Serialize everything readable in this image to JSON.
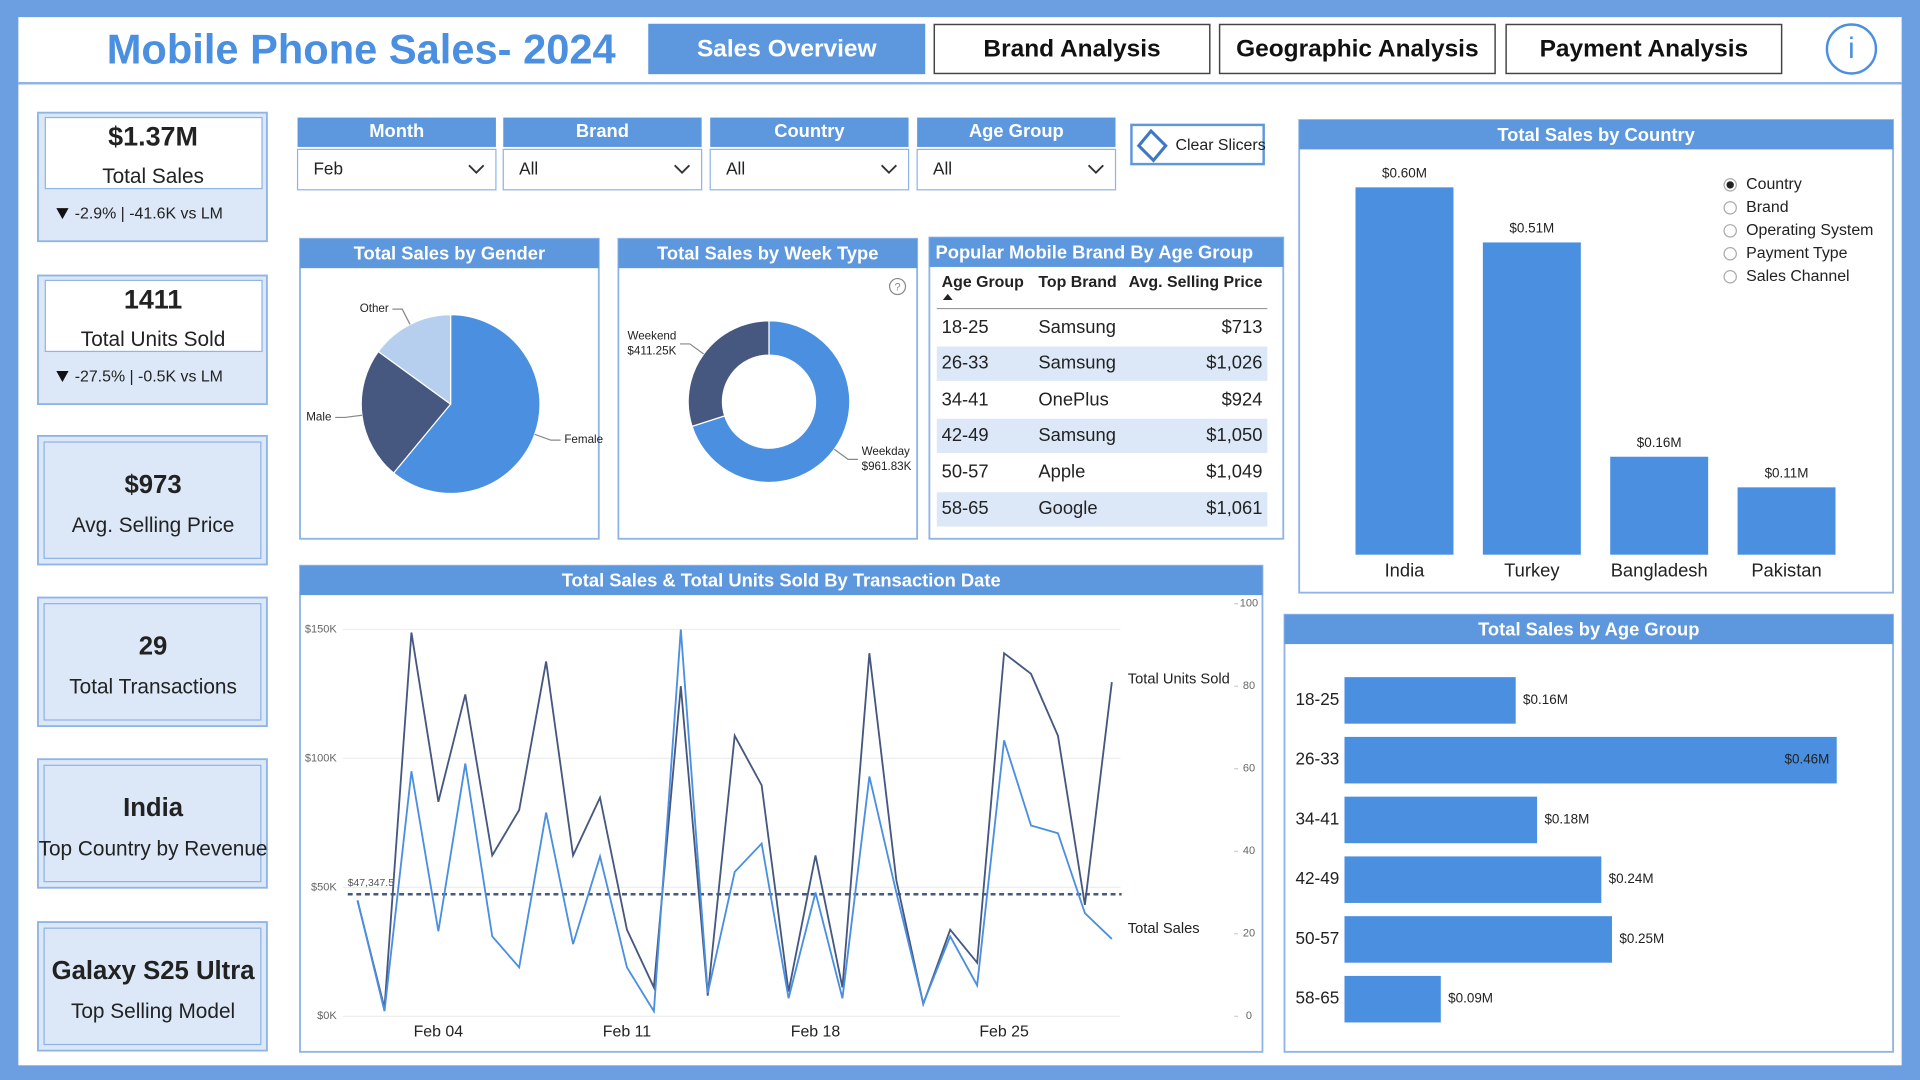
{
  "header": {
    "title": "Mobile Phone Sales- 2024",
    "tabs": [
      "Sales Overview",
      "Brand Analysis",
      "Geographic Analysis",
      "Payment Analysis"
    ],
    "active_tab": 0
  },
  "kpis": [
    {
      "value": "$1.37M",
      "label": "Total Sales",
      "delta": "-2.9% | -41.6K vs LM"
    },
    {
      "value": "1411",
      "label": "Total Units Sold",
      "delta": "-27.5% | -0.5K vs LM"
    },
    {
      "value": "$973",
      "label": "Avg. Selling Price"
    },
    {
      "value": "29",
      "label": "Total Transactions"
    },
    {
      "value": "India",
      "label": "Top Country by Revenue"
    },
    {
      "value": "Galaxy S25 Ultra",
      "label": "Top Selling Model"
    }
  ],
  "slicers": [
    {
      "label": "Month",
      "value": "Feb"
    },
    {
      "label": "Brand",
      "value": "All"
    },
    {
      "label": "Country",
      "value": "All"
    },
    {
      "label": "Age Group",
      "value": "All"
    }
  ],
  "clear_slicers": "Clear Slicers",
  "table": {
    "title": "Popular Mobile Brand By Age Group",
    "columns": [
      "Age Group",
      "Top Brand",
      "Avg. Selling Price"
    ],
    "rows": [
      [
        "18-25",
        "Samsung",
        "$713"
      ],
      [
        "26-33",
        "Samsung",
        "$1,026"
      ],
      [
        "34-41",
        "OnePlus",
        "$924"
      ],
      [
        "42-49",
        "Samsung",
        "$1,050"
      ],
      [
        "50-57",
        "Apple",
        "$1,049"
      ],
      [
        "58-65",
        "Google",
        "$1,061"
      ]
    ]
  },
  "chart_data": [
    {
      "type": "pie",
      "title": "Total Sales by Gender",
      "categories": [
        "Female",
        "Male",
        "Other"
      ],
      "values": [
        61,
        24,
        15
      ],
      "colors": [
        "#4a8fe0",
        "#46587f",
        "#b7cfee"
      ]
    },
    {
      "type": "donut",
      "title": "Total Sales by Week Type",
      "categories": [
        "Weekday",
        "Weekend"
      ],
      "values": [
        961830,
        411250
      ],
      "value_labels": [
        "$961.83K",
        "$411.25K"
      ],
      "colors": [
        "#4a8fe0",
        "#46587f"
      ]
    },
    {
      "type": "line",
      "title": "Total Sales & Total Units Sold By Transaction Date",
      "categories": [
        null,
        null,
        null,
        "Feb 04",
        null,
        null,
        null,
        null,
        null,
        null,
        "Feb 11",
        null,
        null,
        null,
        null,
        null,
        null,
        "Feb 18",
        null,
        null,
        null,
        null,
        null,
        null,
        "Feb 25",
        null,
        null,
        null,
        null
      ],
      "series": [
        {
          "name": "Total Units Sold",
          "color": "#46587f",
          "axis": "y2",
          "values": [
            28,
            2,
            93,
            52,
            78,
            39,
            50,
            86,
            39,
            53,
            21,
            7,
            80,
            5,
            68,
            56,
            6,
            39,
            7,
            88,
            33,
            3,
            21,
            13,
            88,
            83,
            68,
            27,
            81
          ]
        },
        {
          "name": "Total Sales",
          "color": "#4a8fe0",
          "values": [
            45000,
            2000,
            95000,
            33000,
            98000,
            31000,
            19000,
            79000,
            28000,
            62000,
            19000,
            2000,
            150000,
            9000,
            56000,
            67000,
            7000,
            48000,
            7000,
            93000,
            48000,
            5000,
            31000,
            12000,
            107000,
            74000,
            71000,
            40000,
            30000
          ]
        }
      ],
      "ylim": [
        0,
        160000
      ],
      "yticks": [
        {
          "value": 0,
          "label": "$0K"
        },
        {
          "value": 50000,
          "label": "$50K"
        },
        {
          "value": 100000,
          "label": "$100K"
        },
        {
          "value": 150000,
          "label": "$150K"
        }
      ],
      "y2lim": [
        0,
        100
      ],
      "y2ticks": [
        0,
        20,
        40,
        60,
        80,
        100
      ],
      "reference_line": {
        "value": 47347.5,
        "label": "$47,347.5"
      },
      "grid": true
    },
    {
      "type": "bar",
      "title": "Total Sales by Country",
      "categories": [
        "India",
        "Turkey",
        "Bangladesh",
        "Pakistan"
      ],
      "values": [
        600000,
        510000,
        160000,
        110000
      ],
      "value_labels": [
        "$0.60M",
        "$0.51M",
        "$0.16M",
        "$0.11M"
      ],
      "color": "#4a8fe0",
      "field_options": [
        "Country",
        "Brand",
        "Operating System",
        "Payment Type",
        "Sales Channel"
      ],
      "selected_option": 0
    },
    {
      "type": "hbar",
      "title": "Total Sales by Age Group",
      "categories": [
        "18-25",
        "26-33",
        "34-41",
        "42-49",
        "50-57",
        "58-65"
      ],
      "values": [
        160000,
        460000,
        180000,
        240000,
        250000,
        90000
      ],
      "value_labels": [
        "$0.16M",
        "$0.46M",
        "$0.18M",
        "$0.24M",
        "$0.25M",
        "$0.09M"
      ],
      "color": "#4a8fe0"
    }
  ]
}
